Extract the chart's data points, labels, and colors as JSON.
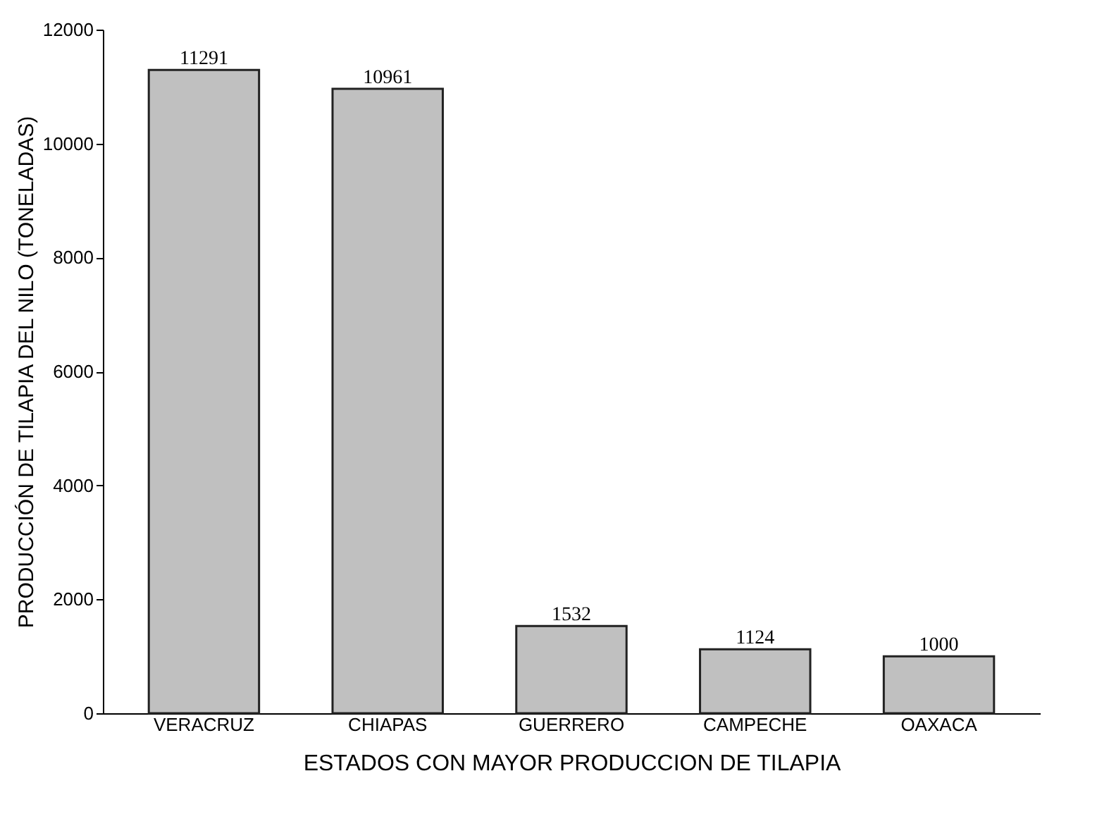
{
  "chart_data": {
    "type": "bar",
    "xlabel": "ESTADOS CON MAYOR PRODUCCION DE TILAPIA",
    "ylabel": "PRODUCCIÓN DE TILAPIA DEL NILO (TONELADAS)",
    "categories": [
      "VERACRUZ",
      "CHIAPAS",
      "GUERRERO",
      "CAMPECHE",
      "OAXACA"
    ],
    "values": [
      11291,
      10961,
      1532,
      1124,
      1000
    ],
    "color": "#c0c0c0",
    "ylim": [
      0,
      12000
    ],
    "yticks": [
      0,
      2000,
      4000,
      6000,
      8000,
      10000,
      12000
    ],
    "grid": false,
    "data_labels": true
  }
}
